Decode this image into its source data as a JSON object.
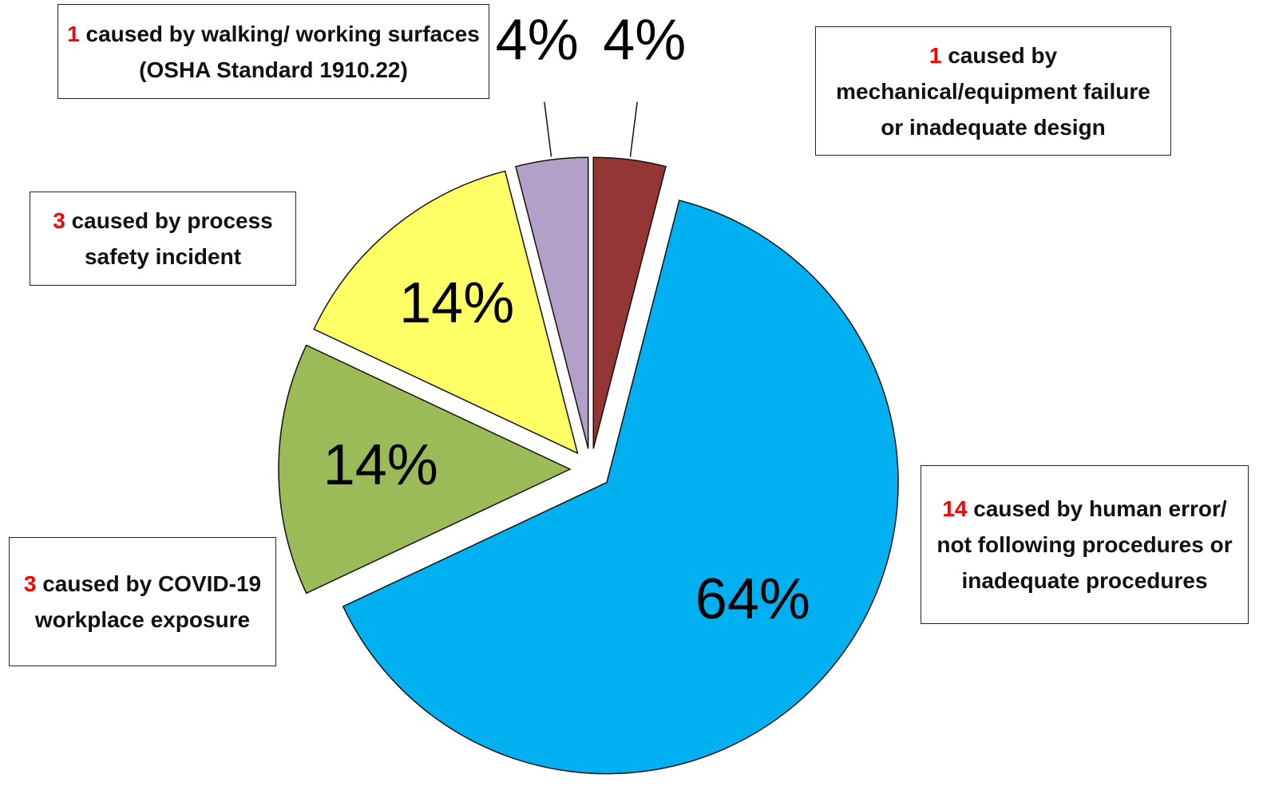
{
  "chart_data": {
    "type": "pie",
    "values": [
      4,
      64,
      14,
      14,
      4
    ],
    "value_labels": [
      "4%",
      "64%",
      "14%",
      "14%",
      "4%"
    ],
    "colors": [
      "#943634",
      "#00b0f0",
      "#9bbb59",
      "#ffff66",
      "#b1a0c7"
    ],
    "annotations": [
      {
        "count": 1,
        "text": "caused by mechanical/equipment failure or inadequate design"
      },
      {
        "count": 14,
        "text": "caused by human error/ not following procedures or inadequate procedures"
      },
      {
        "count": 3,
        "text": "caused by COVID-19 workplace exposure"
      },
      {
        "count": 3,
        "text": "caused by process safety incident"
      },
      {
        "count": 1,
        "text": "caused by walking/ working surfaces (OSHA Standard 1910.22)"
      }
    ]
  }
}
